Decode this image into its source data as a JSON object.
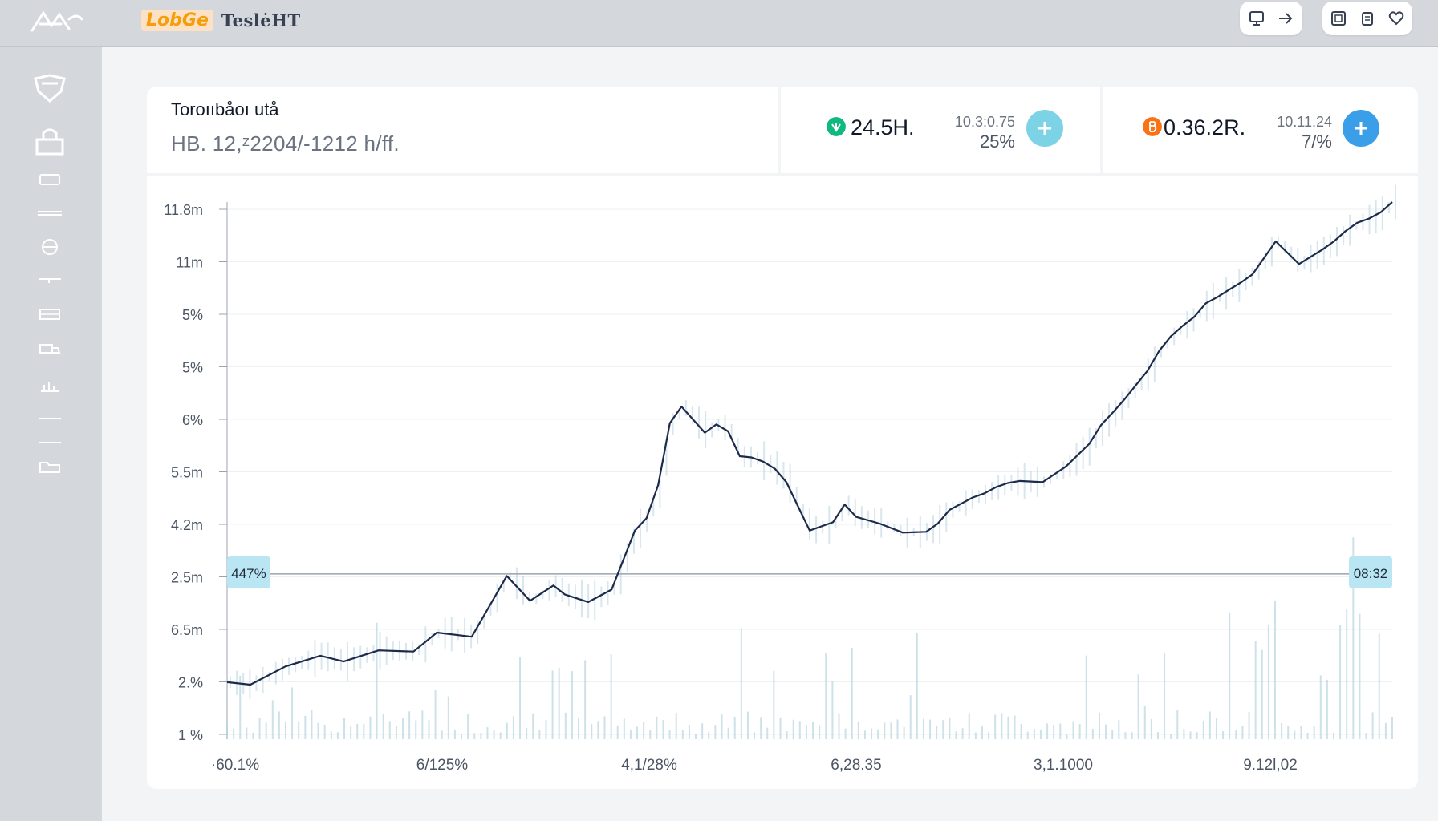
{
  "app": {
    "logo_text": "LobGe",
    "name": "TeslėHT"
  },
  "header": {
    "title": "Toroııbåoı utå",
    "subtitle": "HB. 12,ᶻ2204/-1212 h/ff."
  },
  "stats": [
    {
      "value": "24.5H.",
      "meta_top": "10.3:0.75",
      "meta_bottom": "25%",
      "icon": "leaf-icon",
      "icon_color": "#10b981",
      "button_color": "#7dd3e6"
    },
    {
      "value": "0.36.2R.",
      "meta_top": "10.11.24",
      "meta_bottom": "7/%",
      "icon": "coin-icon",
      "icon_color": "#f97316",
      "button_color": "#3b9ee8"
    }
  ],
  "toolbar_icons": [
    "monitor-icon",
    "arrow-right-icon",
    "gallery-icon",
    "clipboard-icon",
    "heart-icon"
  ],
  "sidebar_icons": [
    "shield-icon",
    "bag-icon",
    "card-icon",
    "divider-icon",
    "globe-icon",
    "pen-icon",
    "grid-icon",
    "truck-icon",
    "chart-icon",
    "minus-icon",
    "line-icon",
    "folder-icon"
  ],
  "sidebar_bottom_icon": "settings-icon",
  "colors": {
    "line": "#1e2a4a",
    "badge": "#b9e6f2",
    "volume": "#b8d4e0",
    "guide": "#9ca3af"
  },
  "chart_data": {
    "type": "line",
    "y_tick_labels": [
      "11.8m",
      "11m",
      "5%",
      "5%",
      "6%",
      "5.5m",
      "4.2m",
      "2.5m",
      "6.5m",
      "2.%",
      "1 %"
    ],
    "x_tick_labels": [
      "·60.1%",
      "6/125%",
      "4,1/28%",
      "6,28.35",
      "3,1.1000",
      "9.12l,02"
    ],
    "reference_line": {
      "left_label": "447%",
      "right_label": "08:32",
      "y": 3.5
    },
    "series": [
      {
        "x": [
          0,
          2,
          5,
          8,
          10,
          13,
          16,
          18,
          21,
          24,
          26,
          28,
          29,
          31,
          33,
          35,
          36,
          37,
          38,
          39,
          41,
          42,
          43,
          44,
          45,
          46,
          47,
          48,
          50,
          52,
          53,
          54,
          56,
          58,
          60,
          61,
          62,
          63,
          64,
          65,
          66,
          67,
          68,
          70,
          72,
          74,
          75,
          76,
          77,
          79,
          80,
          81,
          82,
          83,
          84,
          85,
          86,
          87,
          88,
          90,
          92,
          94,
          95,
          96,
          97,
          98,
          99,
          100
        ],
        "values": [
          0.88,
          0.82,
          1.26,
          1.52,
          1.38,
          1.65,
          1.62,
          2.08,
          1.98,
          3.45,
          2.85,
          3.22,
          3.0,
          2.82,
          3.12,
          4.55,
          4.85,
          5.65,
          7.15,
          7.55,
          6.92,
          7.12,
          6.95,
          6.35,
          6.32,
          6.22,
          6.05,
          5.72,
          4.55,
          4.75,
          5.18,
          4.88,
          4.72,
          4.5,
          4.52,
          4.72,
          5.05,
          5.2,
          5.35,
          5.45,
          5.6,
          5.7,
          5.75,
          5.72,
          6.1,
          6.65,
          7.1,
          7.4,
          7.72,
          8.42,
          8.9,
          9.25,
          9.5,
          9.72,
          10.05,
          10.2,
          10.38,
          10.55,
          10.75,
          11.55,
          11.0,
          11.35,
          11.55,
          11.8,
          12.0,
          12.1,
          12.25,
          12.5
        ]
      }
    ],
    "grid": true
  }
}
